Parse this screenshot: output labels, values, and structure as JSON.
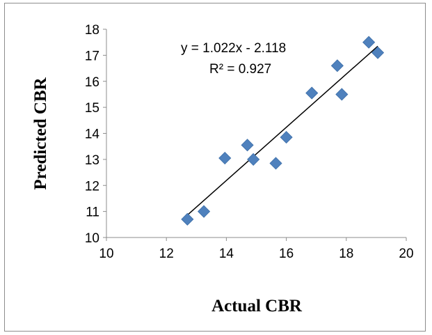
{
  "chart_data": {
    "type": "scatter",
    "title": "",
    "xlabel": "Actual CBR",
    "ylabel": "Predicted CBR",
    "xlim": [
      10,
      20
    ],
    "ylim": [
      10,
      18
    ],
    "xticks": [
      "10",
      "12",
      "14",
      "16",
      "18",
      "20"
    ],
    "yticks": [
      "10",
      "11",
      "12",
      "13",
      "14",
      "15",
      "16",
      "17",
      "18"
    ],
    "grid": false,
    "legend": "none",
    "series": [
      {
        "marker": "diamond",
        "color": "#4f81bd",
        "points": [
          {
            "x": 12.7,
            "y": 10.7
          },
          {
            "x": 13.25,
            "y": 11.0
          },
          {
            "x": 13.95,
            "y": 13.05
          },
          {
            "x": 14.7,
            "y": 13.55
          },
          {
            "x": 14.9,
            "y": 13.0
          },
          {
            "x": 15.65,
            "y": 12.85
          },
          {
            "x": 16.0,
            "y": 13.85
          },
          {
            "x": 16.85,
            "y": 15.55
          },
          {
            "x": 17.7,
            "y": 16.6
          },
          {
            "x": 17.85,
            "y": 15.5
          },
          {
            "x": 18.75,
            "y": 17.5
          },
          {
            "x": 19.05,
            "y": 17.1
          }
        ]
      }
    ],
    "trendline": {
      "slope": 1.022,
      "intercept": -2.118,
      "x_range": [
        12.7,
        19.05
      ],
      "color": "#000000",
      "equation_label": "y = 1.022x - 2.118",
      "r2_label": "R² = 0.927"
    }
  }
}
